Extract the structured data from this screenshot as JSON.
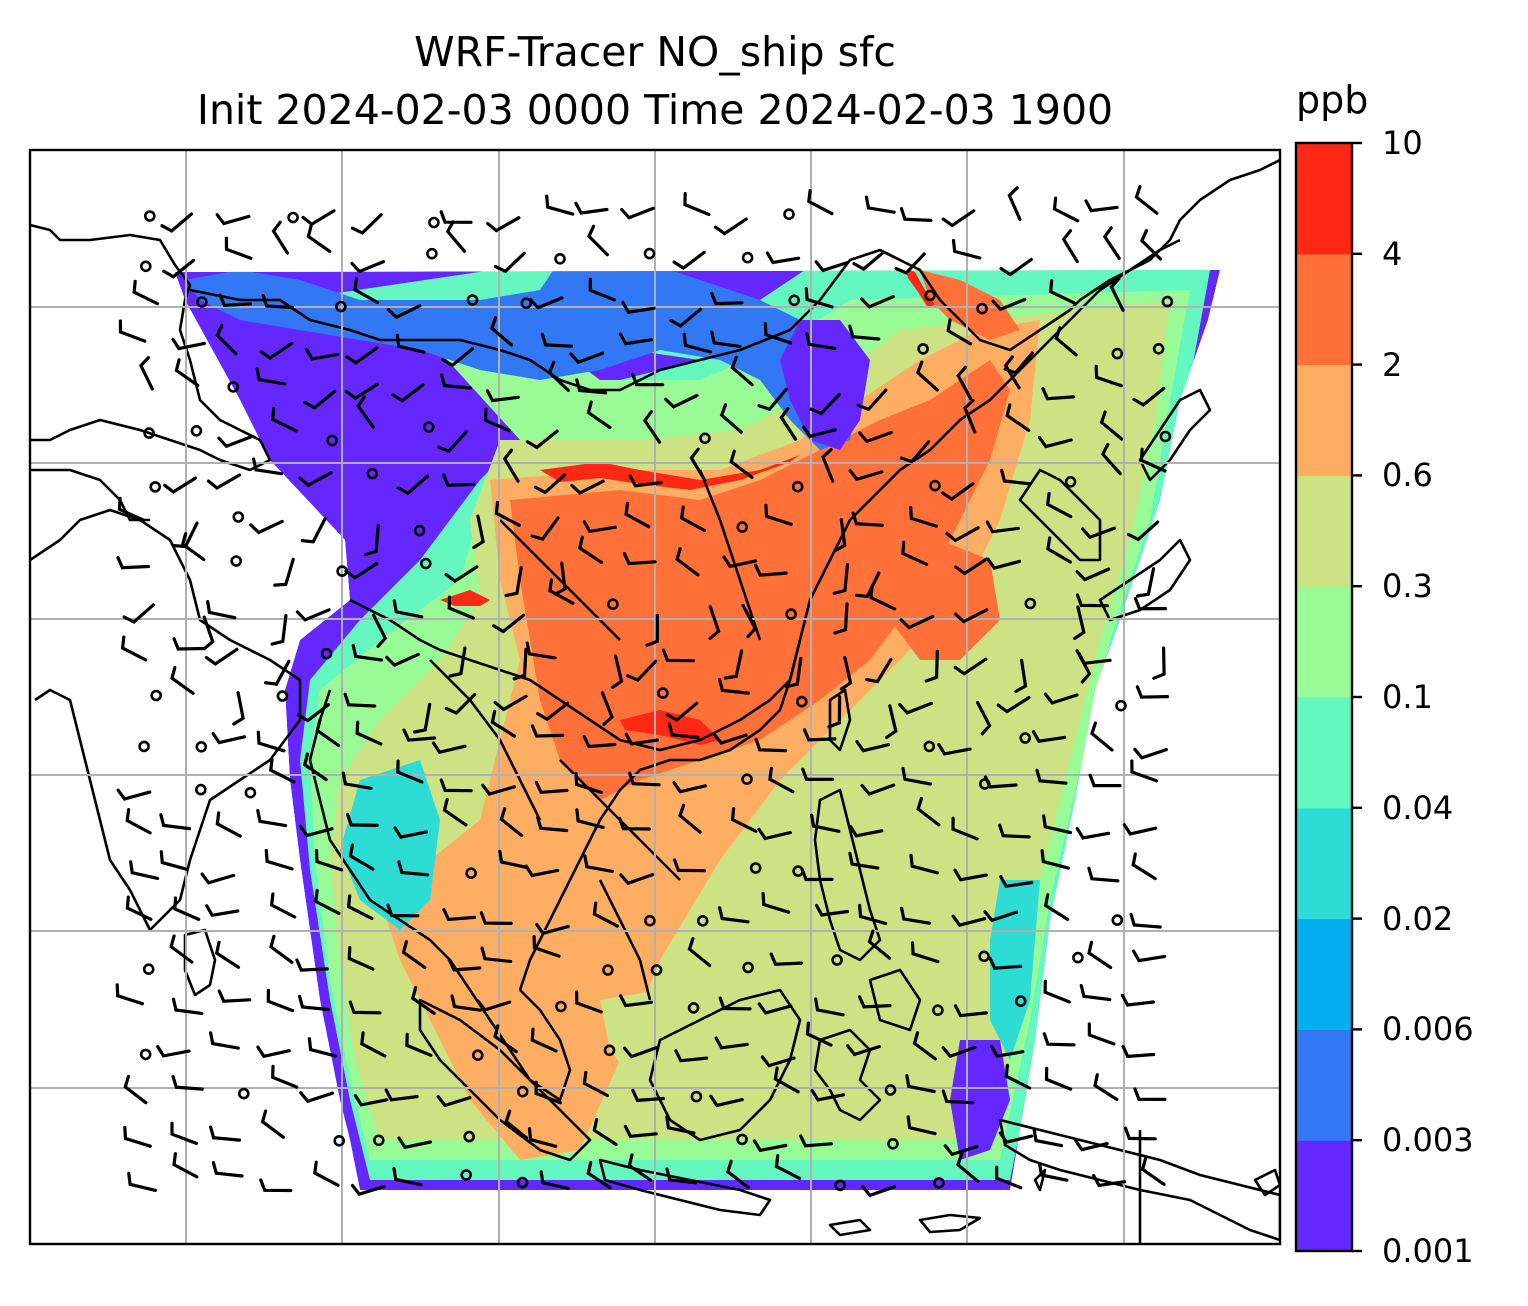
{
  "title": {
    "line1": "WRF-Tracer NO_ship sfc",
    "line2": "Init 2024-02-03 0000 Time 2024-02-03 1900"
  },
  "colorbar": {
    "unit": "ppb",
    "ticks": [
      "0.001",
      "0.003",
      "0.006",
      "0.02",
      "0.04",
      "0.1",
      "0.3",
      "0.6",
      "2",
      "4",
      "10"
    ],
    "colors": [
      "#6428ff",
      "#3278f5",
      "#05aeee",
      "#2edcd6",
      "#64f7c0",
      "#98fb96",
      "#cde283",
      "#fdae62",
      "#ff7139",
      "#ff2814"
    ]
  },
  "map": {
    "gridlines": true,
    "gridline_color": "#b0b0b0",
    "coastline_color": "#000000",
    "overlay": "wind barbs"
  }
}
